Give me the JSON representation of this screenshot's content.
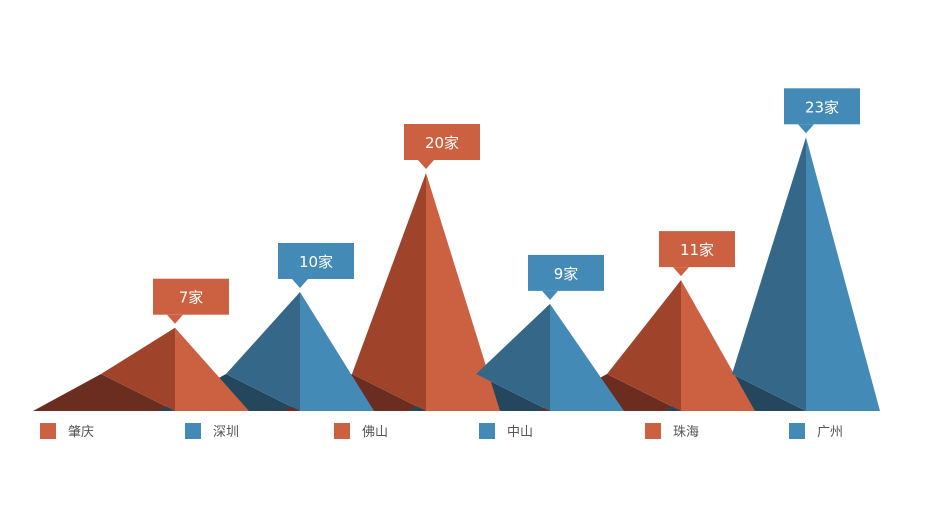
{
  "colors": {
    "orange": "#CC6142",
    "orange_dark": "#A0432B",
    "orange_shadow": "#6B2D1F",
    "blue": "#448AB6",
    "blue_dark": "#356888",
    "blue_shadow": "#24475E"
  },
  "chart_data": {
    "type": "bar",
    "unit": "家",
    "categories": [
      "肇庆",
      "深圳",
      "佛山",
      "中山",
      "珠海",
      "广州"
    ],
    "values": [
      7,
      10,
      20,
      9,
      11,
      23
    ],
    "value_labels": [
      "7家",
      "10家",
      "20家",
      "9家",
      "11家",
      "23家"
    ],
    "series_colors": [
      "orange",
      "blue",
      "orange",
      "blue",
      "orange",
      "blue"
    ],
    "grid": false,
    "legend_placement": "bottom"
  }
}
